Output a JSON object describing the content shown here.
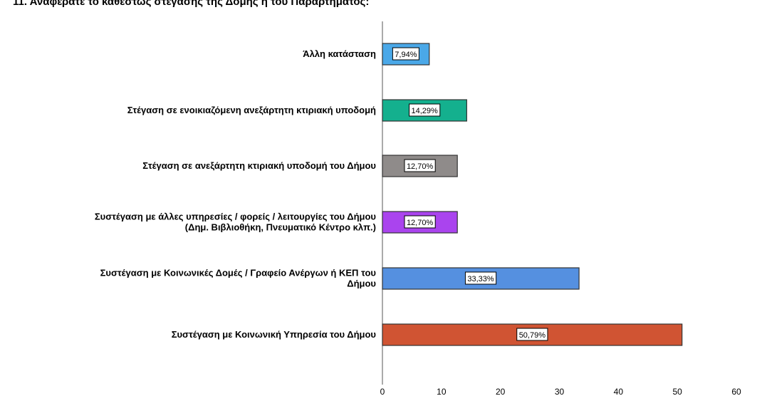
{
  "chart_data": {
    "type": "bar",
    "orientation": "horizontal",
    "title": "11. Αναφέρατε το καθεστώς στέγασης της Δομής ή του Παραρτήματος:",
    "categories": [
      [
        "Άλλη κατάσταση"
      ],
      [
        "Στέγαση σε ενοικιαζόμενη ανεξάρτητη κτιριακή υποδομή"
      ],
      [
        "Στέγαση σε ανεξάρτητη κτιριακή υποδομή του Δήμου"
      ],
      [
        "Συστέγαση με άλλες υπηρεσίες / φορείς / λειτουργίες του Δήμου",
        "(Δημ. Βιβλιοθήκη, Πνευματικό Κέντρο κλπ.)"
      ],
      [
        "Συστέγαση με Κοινωνικές Δομές / Γραφείο Ανέργων ή ΚΕΠ του",
        "Δήμου"
      ],
      [
        "Συστέγαση με Κοινωνική Υπηρεσία του Δήμου"
      ]
    ],
    "values": [
      7.94,
      14.29,
      12.7,
      12.7,
      33.33,
      50.79
    ],
    "data_labels": [
      "7,94%",
      "14,29%",
      "12,70%",
      "12,70%",
      "33,33%",
      "50,79%"
    ],
    "colors": [
      "#4aa8e8",
      "#14b08e",
      "#8f8b8a",
      "#aa44ee",
      "#5590e0",
      "#d05433"
    ],
    "xlim": [
      0,
      60
    ],
    "xticks": [
      "0",
      "10",
      "20",
      "30",
      "40",
      "50",
      "60"
    ],
    "grid": false
  }
}
